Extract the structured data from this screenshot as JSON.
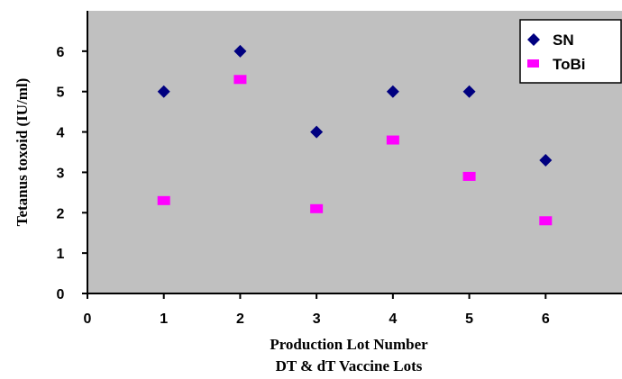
{
  "chart_data": {
    "type": "scatter",
    "title": "",
    "xlabel": "Production Lot Number",
    "xlabel2": "DT & dT Vaccine Lots",
    "ylabel": "Tetanus toxoid (IU/ml)",
    "xlim": [
      0,
      7
    ],
    "ylim": [
      0,
      7
    ],
    "xticks": [
      0,
      1,
      2,
      3,
      4,
      5,
      6
    ],
    "yticks": [
      0,
      1,
      2,
      3,
      4,
      5,
      6
    ],
    "grid": false,
    "legend_position": "top-right",
    "plot_background": "#c0c0c0",
    "series": [
      {
        "name": "SN",
        "marker": "diamond",
        "color": "#000080",
        "x": [
          1,
          2,
          3,
          4,
          5,
          6
        ],
        "y": [
          5.0,
          6.0,
          4.0,
          5.0,
          5.0,
          3.3
        ]
      },
      {
        "name": "ToBi",
        "marker": "square",
        "color": "#ff00ff",
        "x": [
          1,
          2,
          3,
          4,
          5,
          6
        ],
        "y": [
          2.3,
          5.3,
          2.1,
          3.8,
          2.9,
          1.8
        ]
      }
    ]
  }
}
